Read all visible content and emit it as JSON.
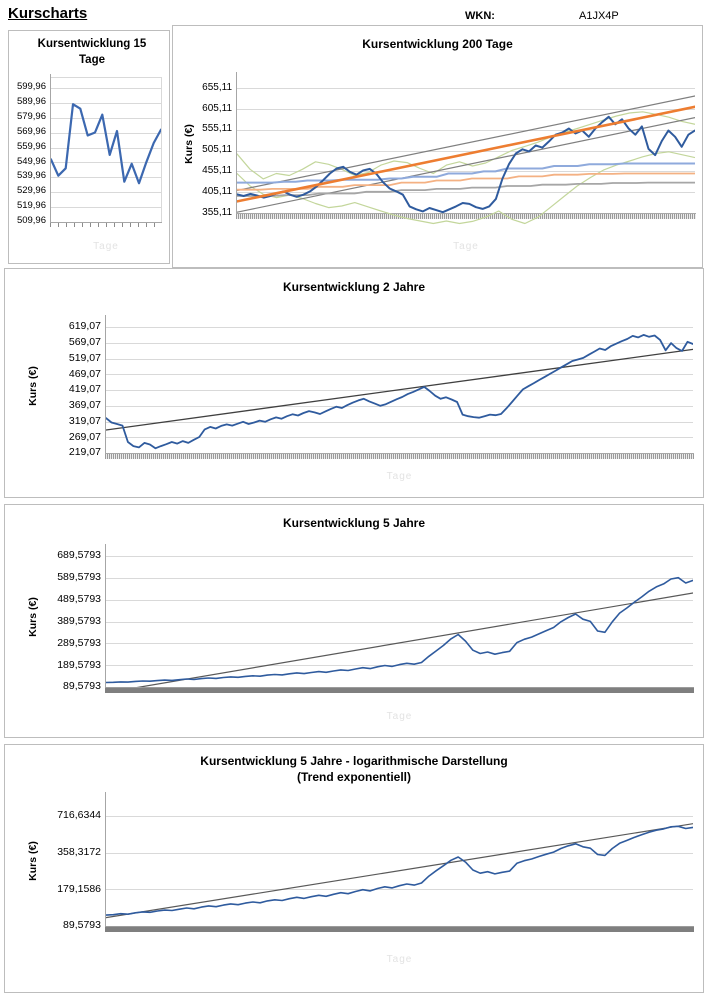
{
  "header": {
    "page_title": "Kurscharts",
    "wkn_label": "WKN:",
    "wkn_value": "A1JX4P"
  },
  "chart_data": [
    {
      "type": "line",
      "title": "Kursentwicklung 15 Tage",
      "subtitle": "",
      "ylabel": "",
      "xlabel": "Tage",
      "scale": "linear",
      "ymin": 509.96,
      "ymax": 606.6,
      "yticks": [
        {
          "label": "599,96",
          "value": 599.96
        },
        {
          "label": "589,96",
          "value": 589.96
        },
        {
          "label": "579,96",
          "value": 579.96
        },
        {
          "label": "569,96",
          "value": 569.96
        },
        {
          "label": "559,96",
          "value": 559.96
        },
        {
          "label": "549,96",
          "value": 549.96
        },
        {
          "label": "539,96",
          "value": 539.96
        },
        {
          "label": "529,96",
          "value": 529.96
        },
        {
          "label": "519,96",
          "value": 519.96
        },
        {
          "label": "509,96",
          "value": 509.96
        }
      ],
      "series": [
        {
          "name": "kurs",
          "color": "#3c68b0",
          "width": 2.2,
          "values": [
            552,
            541,
            546,
            589,
            586,
            568,
            570,
            582,
            555,
            571,
            537,
            549,
            536,
            550,
            563,
            572
          ]
        }
      ]
    },
    {
      "type": "line",
      "title": "Kursentwicklung 200 Tage",
      "subtitle": "",
      "ylabel": "Kurs (€)",
      "xlabel": "Tage",
      "scale": "linear",
      "ymin": 355.11,
      "ymax": 683.9,
      "yticks": [
        {
          "label": "655,11",
          "value": 655.11
        },
        {
          "label": "605,11",
          "value": 605.11
        },
        {
          "label": "555,11",
          "value": 555.11
        },
        {
          "label": "505,11",
          "value": 505.11
        },
        {
          "label": "455,11",
          "value": 455.11
        },
        {
          "label": "405,11",
          "value": 405.11
        },
        {
          "label": "355,11",
          "value": 355.11
        }
      ],
      "series": [
        {
          "name": "bollinger-oben",
          "color": "#c3d69b",
          "width": 1.2,
          "values": [
            497,
            460,
            437,
            450,
            445,
            460,
            478,
            472,
            460,
            445,
            452,
            470,
            480,
            476,
            462,
            450,
            470,
            478,
            468,
            475,
            490,
            505,
            515,
            525,
            538,
            548,
            558,
            568,
            578,
            588,
            595,
            598,
            592,
            585,
            575,
            568
          ]
        },
        {
          "name": "bollinger-unten",
          "color": "#c3d69b",
          "width": 1.2,
          "values": [
            450,
            420,
            400,
            392,
            398,
            390,
            378,
            368,
            372,
            380,
            370,
            360,
            350,
            342,
            336,
            330,
            336,
            330,
            335,
            345,
            360,
            340,
            330,
            345,
            370,
            395,
            420,
            440,
            458,
            470,
            480,
            490,
            498,
            502,
            495,
            488
          ]
        },
        {
          "name": "kanal-oben",
          "color": "#7f7f7f",
          "width": 1.2,
          "values": [
            409,
            636
          ]
        },
        {
          "name": "kanal-unten",
          "color": "#7f7f7f",
          "width": 1.2,
          "values": [
            357,
            584
          ]
        },
        {
          "name": "stufenlinie-grau",
          "color": "#a6a6a6",
          "width": 1.8,
          "values": [
            396,
            396,
            396,
            396,
            398,
            398,
            398,
            402,
            402,
            402,
            402,
            406,
            406,
            406,
            410,
            410,
            410,
            413,
            413,
            413,
            416,
            416,
            416,
            420,
            420,
            420,
            423,
            423,
            423,
            425,
            425,
            425,
            427,
            427,
            427,
            428,
            428,
            428,
            428,
            428
          ]
        },
        {
          "name": "stufenlinie-lachs",
          "color": "#f4b183",
          "width": 1.8,
          "values": [
            411,
            411,
            411,
            413,
            413,
            413,
            413,
            418,
            418,
            418,
            422,
            422,
            422,
            422,
            428,
            428,
            428,
            433,
            433,
            433,
            438,
            438,
            438,
            438,
            443,
            443,
            443,
            447,
            447,
            447,
            449,
            449,
            449,
            450,
            450,
            450,
            450,
            450,
            450,
            450
          ]
        },
        {
          "name": "stufenlinie-blau",
          "color": "#8faadc",
          "width": 2,
          "values": [
            428,
            428,
            428,
            428,
            430,
            430,
            433,
            433,
            433,
            435,
            435,
            435,
            435,
            438,
            438,
            442,
            442,
            442,
            450,
            450,
            450,
            455,
            455,
            462,
            462,
            462,
            462,
            468,
            468,
            468,
            472,
            472,
            472,
            474,
            474,
            474,
            474,
            474,
            474,
            474
          ]
        },
        {
          "name": "kurs",
          "color": "#2f5b9e",
          "width": 2,
          "values": [
            400,
            396,
            401,
            397,
            392,
            396,
            402,
            407,
            399,
            394,
            399,
            407,
            419,
            434,
            450,
            462,
            466,
            454,
            447,
            457,
            461,
            449,
            429,
            414,
            407,
            399,
            371,
            364,
            359,
            367,
            362,
            357,
            364,
            371,
            379,
            377,
            369,
            365,
            371,
            389,
            438,
            473,
            498,
            508,
            503,
            517,
            512,
            527,
            543,
            548,
            558,
            546,
            553,
            538,
            558,
            573,
            586,
            568,
            580,
            558,
            543,
            563,
            509,
            494,
            528,
            553,
            538,
            514,
            543,
            553
          ]
        },
        {
          "name": "trend-linear",
          "color": "#ed7d31",
          "width": 2.6,
          "values": [
            383,
            610
          ]
        }
      ]
    },
    {
      "type": "line",
      "title": "Kursentwicklung 2 Jahre",
      "subtitle": "",
      "ylabel": "Kurs (€)",
      "xlabel": "Tage",
      "scale": "linear",
      "ymin": 219.07,
      "ymax": 644.5,
      "yticks": [
        {
          "label": "619,07",
          "value": 619.07
        },
        {
          "label": "569,07",
          "value": 569.07
        },
        {
          "label": "519,07",
          "value": 519.07
        },
        {
          "label": "469,07",
          "value": 469.07
        },
        {
          "label": "419,07",
          "value": 419.07
        },
        {
          "label": "369,07",
          "value": 369.07
        },
        {
          "label": "319,07",
          "value": 319.07
        },
        {
          "label": "269,07",
          "value": 269.07
        },
        {
          "label": "219,07",
          "value": 219.07
        }
      ],
      "series": [
        {
          "name": "trend-linear",
          "color": "#404040",
          "width": 1.3,
          "values": [
            292,
            548
          ]
        },
        {
          "name": "kurs",
          "color": "#2f5b9e",
          "width": 1.8,
          "values": [
            330,
            316,
            311,
            306,
            254,
            241,
            237,
            251,
            246,
            234,
            241,
            247,
            254,
            249,
            257,
            251,
            261,
            270,
            294,
            302,
            297,
            305,
            310,
            306,
            312,
            318,
            311,
            316,
            322,
            318,
            326,
            332,
            328,
            336,
            342,
            338,
            346,
            352,
            348,
            343,
            351,
            359,
            366,
            362,
            371,
            379,
            386,
            391,
            383,
            376,
            369,
            374,
            382,
            390,
            397,
            406,
            413,
            421,
            429,
            416,
            401,
            391,
            396,
            389,
            381,
            341,
            336,
            333,
            331,
            336,
            341,
            339,
            343,
            361,
            381,
            401,
            421,
            431,
            441,
            451,
            461,
            471,
            481,
            491,
            501,
            511,
            516,
            521,
            531,
            541,
            551,
            546,
            558,
            566,
            574,
            581,
            591,
            586,
            594,
            588,
            592,
            578,
            545,
            568,
            552,
            543,
            572,
            565
          ]
        }
      ]
    },
    {
      "type": "line",
      "title": "Kursentwicklung 5 Jahre",
      "subtitle": "",
      "ylabel": "Kurs (€)",
      "xlabel": "Tage",
      "scale": "linear",
      "ymin": 89.5793,
      "ymax": 726.2,
      "yticks": [
        {
          "label": "689,5793",
          "value": 689.5793
        },
        {
          "label": "589,5793",
          "value": 589.5793
        },
        {
          "label": "489,5793",
          "value": 489.5793
        },
        {
          "label": "389,5793",
          "value": 389.5793
        },
        {
          "label": "289,5793",
          "value": 289.5793
        },
        {
          "label": "189,5793",
          "value": 189.5793
        },
        {
          "label": "89,5793",
          "value": 89.5793
        }
      ],
      "series": [
        {
          "name": "trend-linear",
          "color": "#595959",
          "width": 1.2,
          "values": [
            63,
            520
          ]
        },
        {
          "name": "kurs",
          "color": "#2f5b9e",
          "width": 1.6,
          "values": [
            110,
            111,
            113,
            112,
            115,
            117,
            116,
            119,
            121,
            120,
            123,
            126,
            124,
            128,
            131,
            129,
            133,
            136,
            134,
            138,
            141,
            139,
            144,
            147,
            145,
            150,
            154,
            151,
            156,
            160,
            157,
            163,
            168,
            165,
            172,
            178,
            174,
            182,
            188,
            184,
            192,
            198,
            194,
            202,
            230,
            255,
            280,
            310,
            330,
            300,
            258,
            243,
            250,
            240,
            247,
            253,
            293,
            308,
            318,
            333,
            348,
            362,
            388,
            408,
            424,
            400,
            390,
            346,
            340,
            388,
            428,
            452,
            478,
            502,
            528,
            548,
            562,
            584,
            590,
            566,
            578
          ]
        }
      ]
    },
    {
      "type": "line",
      "title": "Kursentwicklung 5 Jahre - logarithmische Darstellung",
      "subtitle": "(Trend exponentiell)",
      "ylabel": "Kurs (€)",
      "xlabel": "Tage",
      "scale": "log",
      "ymin": 89.5793,
      "ymax": 1045.8,
      "yticks": [
        {
          "label": "716,6344",
          "value": 716.6344
        },
        {
          "label": "358,3172",
          "value": 358.3172
        },
        {
          "label": "179,1586",
          "value": 179.1586
        },
        {
          "label": "89,5793",
          "value": 89.5793
        }
      ],
      "series": [
        {
          "name": "trend-exponentiell",
          "color": "#595959",
          "width": 1.2,
          "values": [
            105,
            620
          ]
        },
        {
          "name": "kurs",
          "color": "#2f5b9e",
          "width": 1.6,
          "values": [
            110,
            111,
            113,
            112,
            115,
            117,
            116,
            119,
            121,
            120,
            123,
            126,
            124,
            128,
            131,
            129,
            133,
            136,
            134,
            138,
            141,
            139,
            144,
            147,
            145,
            150,
            154,
            151,
            156,
            160,
            157,
            163,
            168,
            165,
            172,
            178,
            174,
            182,
            188,
            184,
            192,
            198,
            194,
            202,
            230,
            255,
            280,
            310,
            330,
            300,
            258,
            243,
            250,
            240,
            247,
            253,
            293,
            308,
            318,
            333,
            348,
            362,
            388,
            408,
            424,
            400,
            390,
            346,
            340,
            388,
            428,
            452,
            478,
            502,
            528,
            548,
            562,
            584,
            590,
            566,
            578
          ]
        }
      ]
    }
  ]
}
